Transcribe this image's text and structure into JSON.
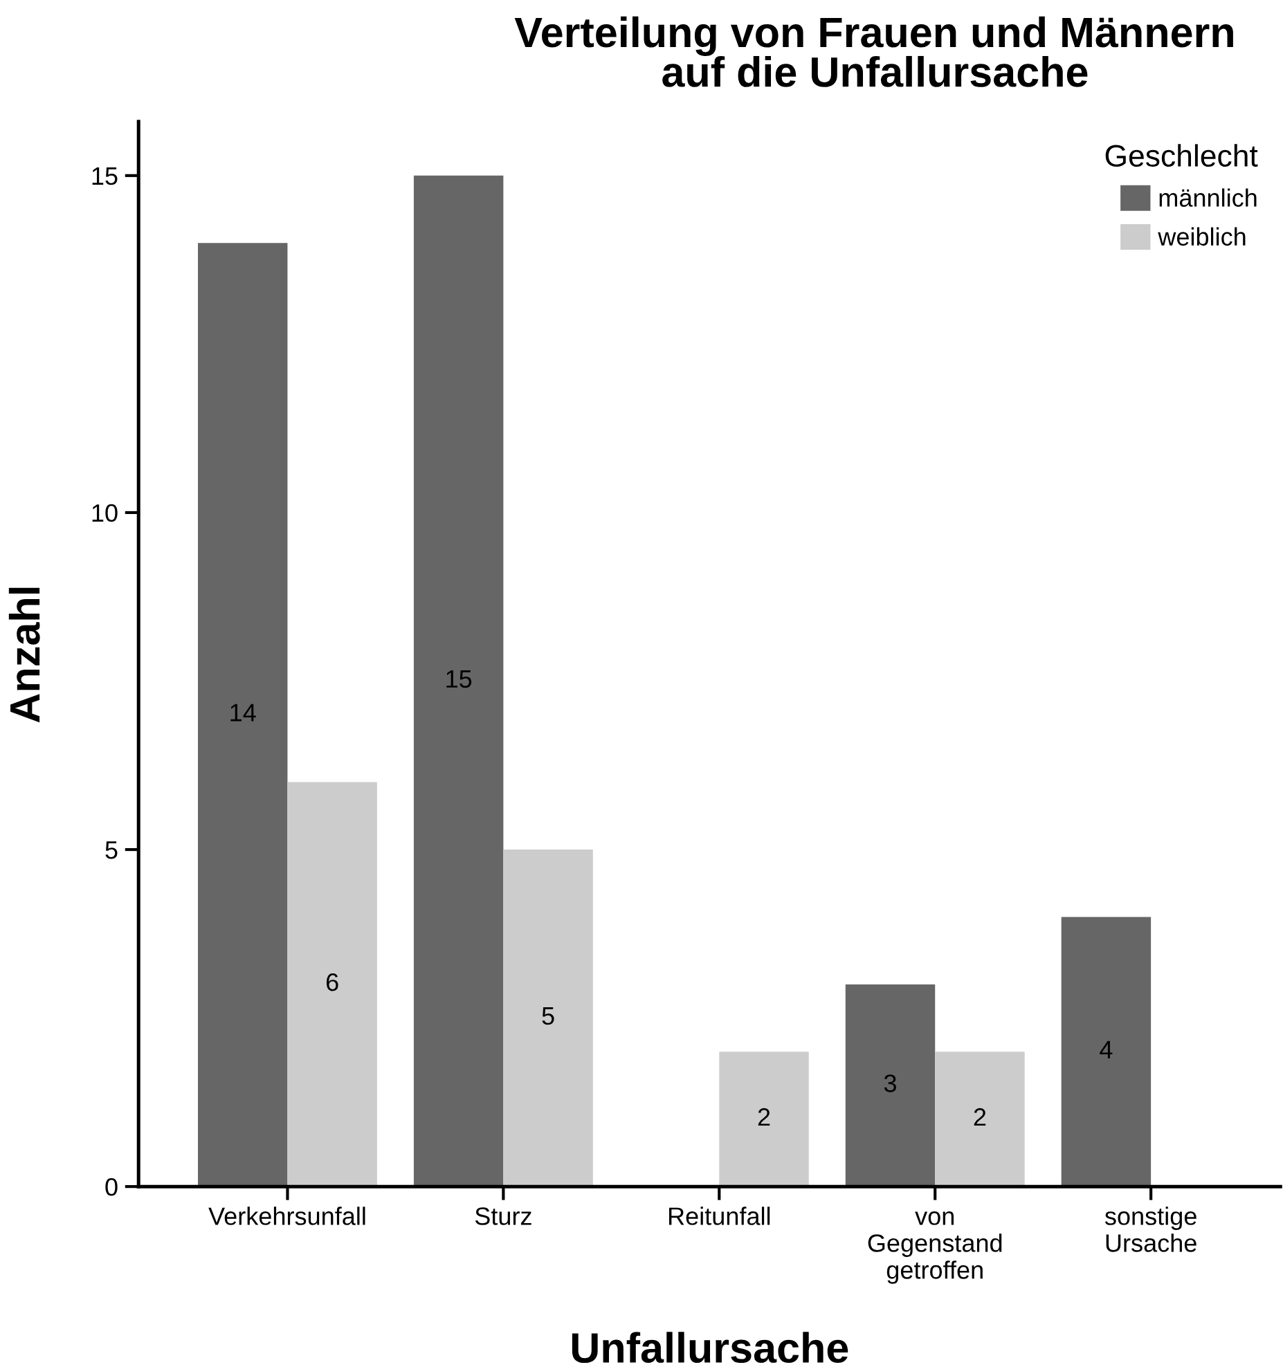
{
  "chart_data": {
    "type": "bar",
    "title": "Verteilung von Frauen und Männern\nauf die Unfallursache",
    "xlabel": "Unfallursache",
    "ylabel": "Anzahl",
    "legend_title": "Geschlecht",
    "categories": [
      "Verkehrsunfall",
      "Sturz",
      "Reitunfall",
      "von\nGegenstand\ngetroffen",
      "sonstige\nUrsache"
    ],
    "series": [
      {
        "name": "männlich",
        "color": "#666666",
        "values": [
          14,
          15,
          null,
          3,
          4
        ]
      },
      {
        "name": "weiblich",
        "color": "#cccccc",
        "values": [
          6,
          5,
          2,
          2,
          null
        ]
      }
    ],
    "ylim": [
      0,
      15.8
    ],
    "yticks": [
      0,
      5,
      10,
      15
    ],
    "grid": false,
    "legend": "top right",
    "data_labels": true
  }
}
